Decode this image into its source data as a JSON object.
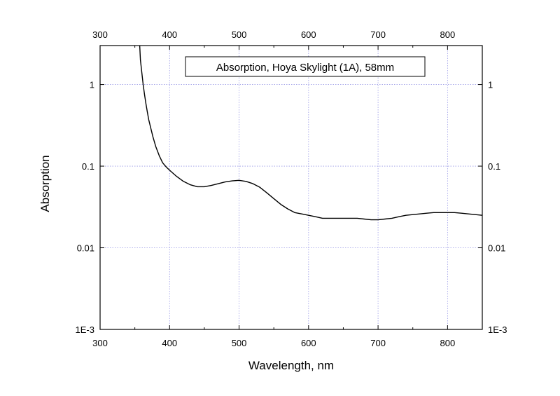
{
  "chart_data": {
    "type": "line",
    "title": "Absorption, Hoya Skylight (1A), 58mm",
    "xlabel": "Wavelength, nm",
    "ylabel": "Absorption",
    "xlim": [
      300,
      850
    ],
    "ylim": [
      0.001,
      3
    ],
    "yscale": "log",
    "grid": true,
    "x_ticks": [
      300,
      400,
      500,
      600,
      700,
      800
    ],
    "x_tick_labels": [
      "300",
      "400",
      "500",
      "600",
      "700",
      "800"
    ],
    "y_ticks": [
      0.001,
      0.01,
      0.1,
      1
    ],
    "y_tick_labels": [
      "1E-3",
      "0.01",
      "0.1",
      "1"
    ],
    "series": [
      {
        "color": "#000000",
        "x": [
          357,
          358,
          360,
          362,
          364,
          366,
          368,
          370,
          373,
          376,
          380,
          385,
          390,
          395,
          400,
          410,
          420,
          430,
          440,
          450,
          460,
          470,
          480,
          490,
          500,
          510,
          520,
          530,
          540,
          550,
          560,
          570,
          580,
          590,
          600,
          610,
          620,
          630,
          640,
          650,
          660,
          670,
          680,
          690,
          700,
          710,
          720,
          730,
          740,
          750,
          760,
          770,
          780,
          790,
          800,
          810,
          820,
          830,
          840,
          850
        ],
        "y": [
          3.0,
          2.0,
          1.4,
          1.0,
          0.75,
          0.58,
          0.46,
          0.37,
          0.29,
          0.23,
          0.175,
          0.135,
          0.11,
          0.098,
          0.089,
          0.075,
          0.065,
          0.059,
          0.056,
          0.056,
          0.058,
          0.061,
          0.064,
          0.066,
          0.067,
          0.065,
          0.061,
          0.055,
          0.047,
          0.04,
          0.034,
          0.03,
          0.027,
          0.026,
          0.025,
          0.024,
          0.023,
          0.023,
          0.023,
          0.023,
          0.023,
          0.023,
          0.0225,
          0.022,
          0.022,
          0.0225,
          0.023,
          0.024,
          0.025,
          0.0255,
          0.026,
          0.0265,
          0.027,
          0.027,
          0.027,
          0.027,
          0.0265,
          0.026,
          0.0255,
          0.025
        ]
      }
    ]
  }
}
